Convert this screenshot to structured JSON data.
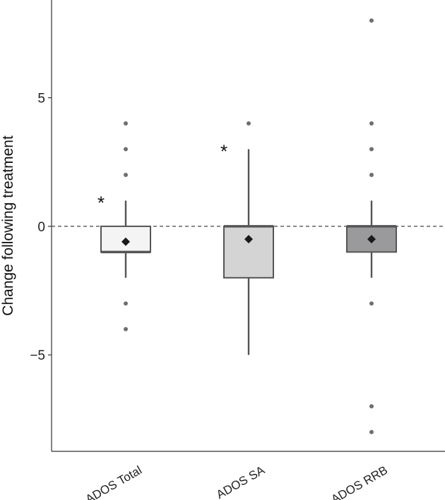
{
  "chart_data": {
    "type": "box",
    "title": "",
    "xlabel": "",
    "ylabel": "Change following treatment",
    "ylim": [
      -8.75,
      8.8
    ],
    "yticks": [
      -5,
      0,
      5
    ],
    "ytick_labels": [
      "−5",
      "0",
      "5"
    ],
    "reference_line": 0,
    "categories": [
      "ADOS Total",
      "ADOS SA",
      "ADOS RRB"
    ],
    "boxes": [
      {
        "name": "ADOS Total",
        "q1": -1,
        "median": -1,
        "q3": 0,
        "whisker_low": -2,
        "whisker_high": 1,
        "mean": -0.6,
        "outliers": [
          4,
          3,
          2,
          -3,
          -4
        ],
        "significance": "*",
        "fill": "#f4f4f4"
      },
      {
        "name": "ADOS SA",
        "q1": -2,
        "median": 0,
        "q3": 0,
        "whisker_low": -5,
        "whisker_high": 3,
        "mean": -0.5,
        "outliers": [
          4
        ],
        "significance": "*",
        "fill": "#d4d4d4"
      },
      {
        "name": "ADOS RRB",
        "q1": -1,
        "median": 0,
        "q3": 0,
        "whisker_low": -2,
        "whisker_high": 1,
        "mean": -0.5,
        "outliers": [
          8,
          4,
          3,
          2,
          -3,
          -7,
          -8
        ],
        "significance": "",
        "fill": "#9a9a9c"
      }
    ],
    "colors": {
      "line": "#555555",
      "outlier": "#6f6f6f",
      "mean": "#1a1a1a",
      "axis": "#333333"
    }
  }
}
